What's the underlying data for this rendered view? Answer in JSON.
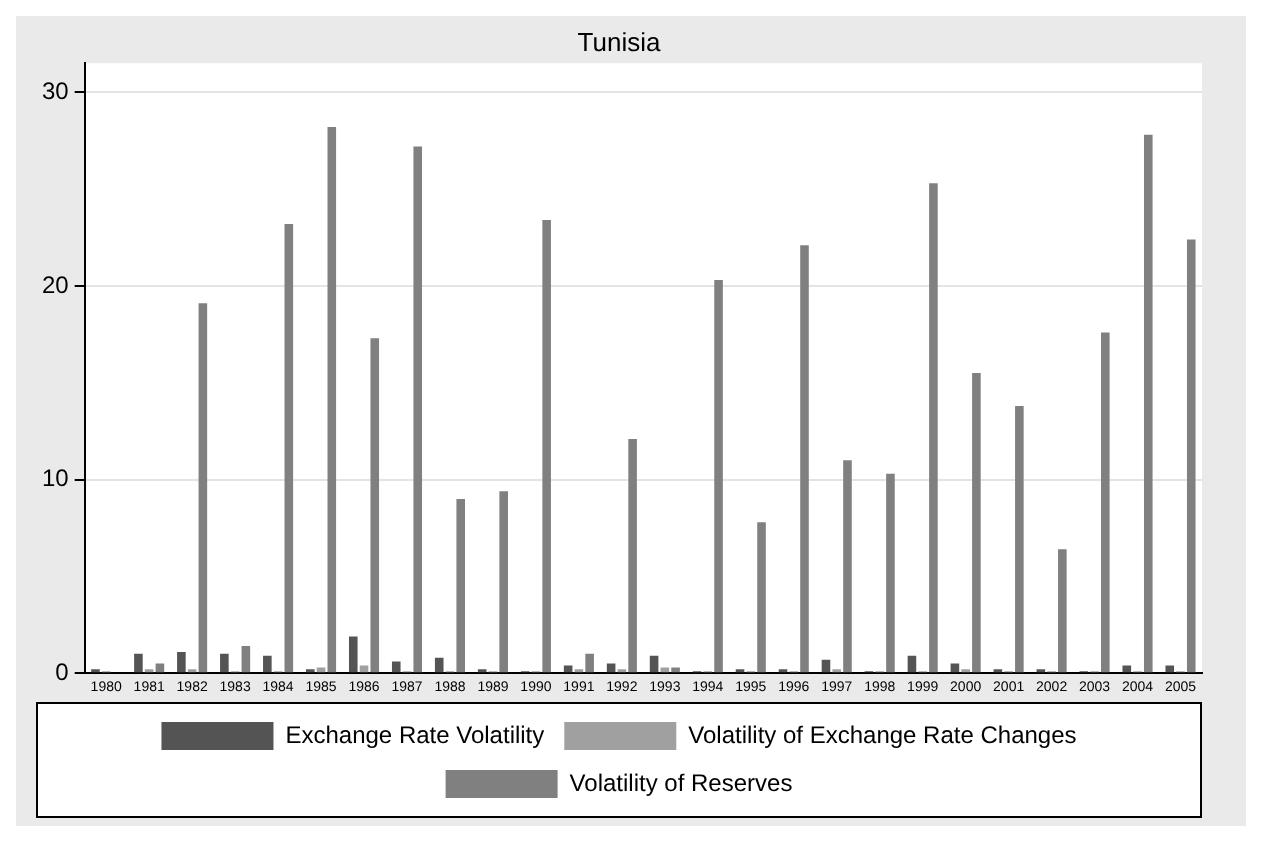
{
  "chart_data": {
    "type": "bar",
    "title": "Tunisia",
    "categories": [
      "1980",
      "1981",
      "1982",
      "1983",
      "1984",
      "1985",
      "1986",
      "1987",
      "1988",
      "1989",
      "1990",
      "1991",
      "1992",
      "1993",
      "1994",
      "1995",
      "1996",
      "1997",
      "1998",
      "1999",
      "2000",
      "2001",
      "2002",
      "2003",
      "2004",
      "2005"
    ],
    "series": [
      {
        "name": "Exchange Rate Volatility",
        "color": "#545454",
        "values": [
          0.2,
          1.0,
          1.1,
          1.0,
          0.9,
          0.2,
          1.9,
          0.6,
          0.8,
          0.2,
          0.1,
          0.4,
          0.5,
          0.9,
          0.1,
          0.2,
          0.2,
          0.7,
          0.1,
          0.9,
          0.5,
          0.2,
          0.2,
          0.1,
          0.4,
          0.4
        ]
      },
      {
        "name": "Volatility of Exchange Rate Changes",
        "color": "#a0a0a0",
        "values": [
          0.1,
          0.2,
          0.2,
          0.1,
          0.1,
          0.3,
          0.4,
          0.1,
          0.1,
          0.1,
          0.1,
          0.2,
          0.2,
          0.3,
          0.1,
          0.1,
          0.1,
          0.2,
          0.1,
          0.1,
          0.2,
          0.1,
          0.1,
          0.1,
          0.1,
          0.1
        ]
      },
      {
        "name": "Volatility of Reserves",
        "color": "#808080",
        "values": [
          0,
          0.5,
          19.1,
          1.4,
          23.2,
          28.2,
          17.3,
          27.2,
          9.0,
          9.4,
          23.4,
          1.0,
          12.1,
          0.3,
          20.3,
          7.8,
          22.1,
          11.0,
          10.3,
          25.3,
          15.5,
          13.8,
          6.4,
          17.6,
          27.8,
          22.4
        ]
      }
    ],
    "ylim": [
      0,
      31.5
    ],
    "yticks": [
      0,
      10,
      20,
      30
    ],
    "grid": "y",
    "legend": "bottom"
  }
}
